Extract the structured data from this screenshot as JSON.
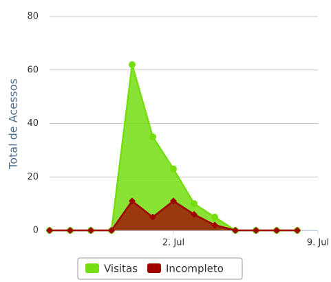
{
  "chart_data": {
    "type": "area",
    "y_label": "Total de Acessos",
    "x": [
      0,
      1,
      2,
      3,
      4,
      5,
      6,
      7,
      8,
      9,
      10,
      11,
      12
    ],
    "xlim": [
      0,
      13
    ],
    "xticks": [
      {
        "value": 6,
        "label": "2. Jul"
      },
      {
        "value": 13,
        "label": "9. Jul"
      }
    ],
    "ylim": [
      0,
      80
    ],
    "yticks": [
      0,
      20,
      40,
      60,
      80
    ],
    "grid": true,
    "legend": "bottom",
    "series": [
      {
        "name": "Visitas",
        "color": "#74de10",
        "marker": "circle",
        "values": [
          0,
          0,
          0,
          0,
          62,
          35,
          23,
          10,
          5,
          0,
          0,
          0,
          0
        ]
      },
      {
        "name": "Incompleto",
        "color": "#a00000",
        "marker": "diamond",
        "values": [
          0,
          0,
          0,
          0,
          11,
          5,
          11,
          6,
          2,
          0,
          0,
          0,
          0
        ]
      }
    ]
  }
}
